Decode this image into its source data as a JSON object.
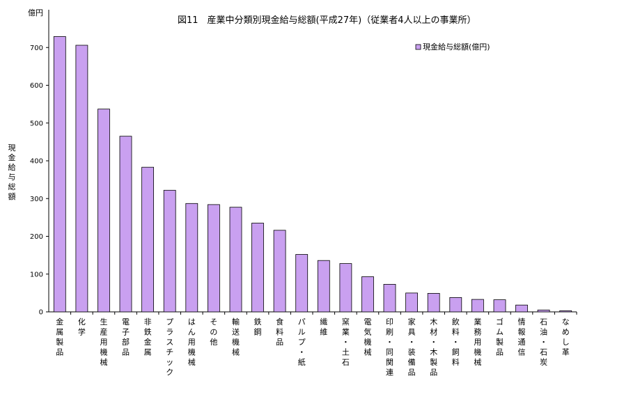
{
  "chart_data": {
    "type": "bar",
    "title": "図11　産業中分類別現金給与総額(平成27年)（従業者4人以上の事業所）",
    "unit_label": "億円",
    "ylabel": "現金給与総額",
    "ylim": [
      0,
      700
    ],
    "y_ticks": [
      "0",
      "100",
      "200",
      "300",
      "400",
      "500",
      "600",
      "700"
    ],
    "legend_position": "top-right",
    "bar_color": "#c9a0f0",
    "bar_stroke": "#000000",
    "categories": [
      "金属製品",
      "化学",
      "生産用機械",
      "電子部品",
      "非鉄金属",
      "プラスチック",
      "はん用機械",
      "その他",
      "輸送機械",
      "鉄鋼",
      "食料品",
      "パルプ・紙",
      "繊維",
      "窯業・土石",
      "電気機械",
      "印刷・同関連",
      "家具・装備品",
      "木材・木製品",
      "飲料・飼料",
      "業務用機械",
      "ゴム製品",
      "情報通信",
      "石油・石炭",
      "なめし革"
    ],
    "series": [
      {
        "name": "現金給与総額(億円)",
        "values": [
          729,
          706,
          537,
          465,
          383,
          322,
          287,
          284,
          277,
          235,
          216,
          152,
          136,
          128,
          93,
          73,
          50,
          49,
          38,
          33,
          32,
          18,
          5,
          3
        ]
      }
    ]
  }
}
